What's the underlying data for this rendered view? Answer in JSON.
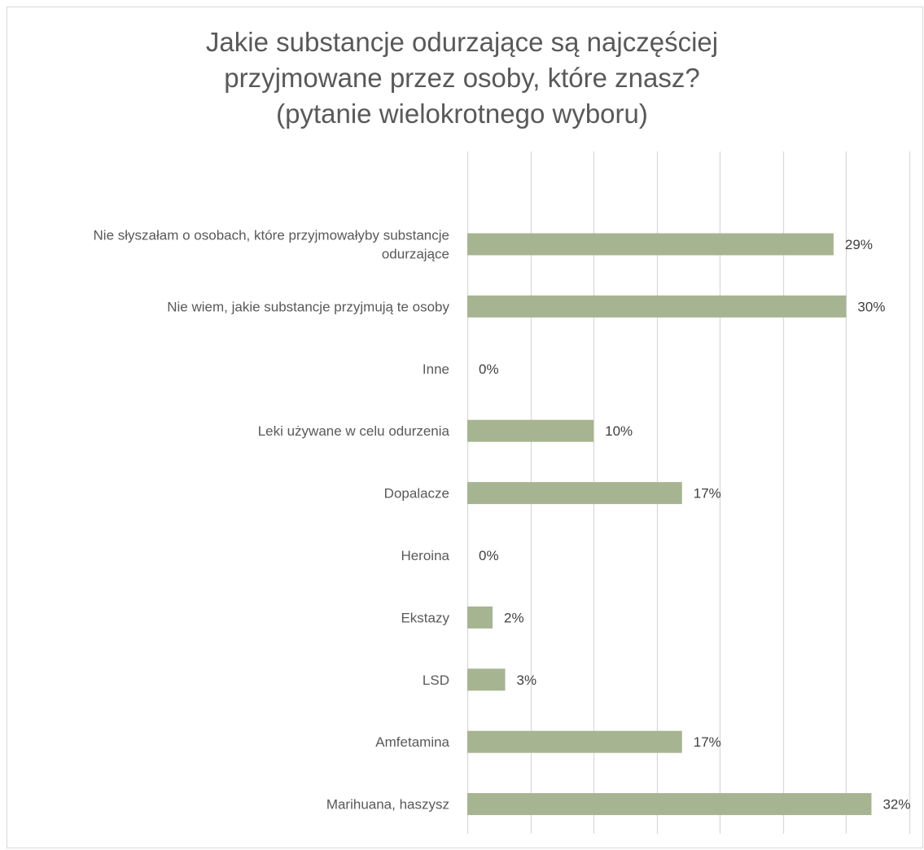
{
  "chart_data": {
    "type": "bar",
    "orientation": "horizontal",
    "title_lines": [
      "Jakie substancje odurzające są najczęściej",
      "przyjmowane przez osoby, które znasz?",
      "(pytanie wielokrotnego wyboru)"
    ],
    "categories": [
      [
        "Nie słyszałam o osobach, które przyjmowałyby substancje",
        "odurzające"
      ],
      [
        "Nie wiem, jakie substancje przyjmują te osoby"
      ],
      [
        "Inne"
      ],
      [
        "Leki używane w celu odurzenia"
      ],
      [
        "Dopalacze"
      ],
      [
        "Heroina"
      ],
      [
        "Ekstazy"
      ],
      [
        "LSD"
      ],
      [
        "Amfetamina"
      ],
      [
        "Marihuana, haszysz"
      ]
    ],
    "values": [
      29,
      30,
      0,
      10,
      17,
      0,
      2,
      3,
      17,
      32
    ],
    "data_labels": [
      "29%",
      "30%",
      "0%",
      "10%",
      "17%",
      "0%",
      "2%",
      "3%",
      "17%",
      "32%"
    ],
    "value_unit": "%",
    "xlim": [
      0,
      35
    ],
    "x_gridline_step": 5,
    "grid": true,
    "legend": "none",
    "bar_color": "#a6b491",
    "gridline_color": "#d9d9d9",
    "text_color": "#595959"
  }
}
